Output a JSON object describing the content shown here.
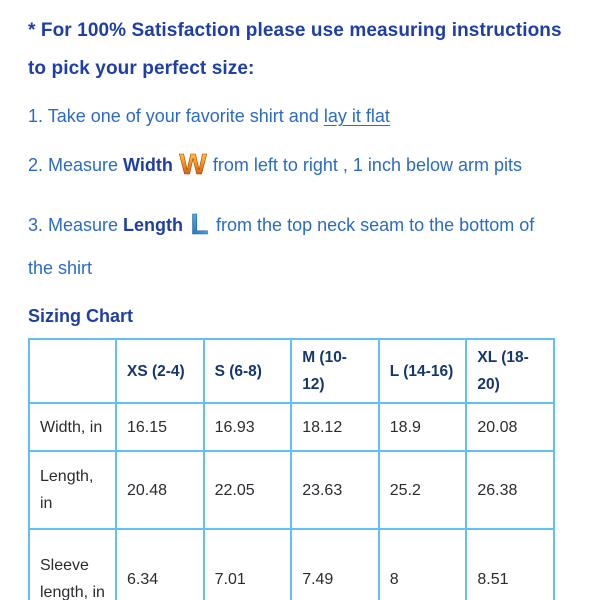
{
  "colors": {
    "heading_blue": "#1e3fa9",
    "body_blue": "#2a6bc9",
    "table_border_blue": "#5fc2f2",
    "table_header_navy": "#16366e",
    "cell_text": "#2a2c30",
    "w_icon_gradient_top": "#ffd34e",
    "w_icon_gradient_bottom": "#c2410b",
    "l_icon_gradient_top": "#8fd8f8",
    "l_icon_gradient_bottom": "#1a67ae"
  },
  "intro": {
    "line1": "* For 100% Satisfaction please use measuring instructions",
    "line2": "to pick your perfect size:"
  },
  "steps": {
    "step1": {
      "prefix": "1. Take one of your favorite shirt and ",
      "underlined": "lay it flat"
    },
    "step2": {
      "prefix": "2. Measure ",
      "keyword": "Width",
      "icon_letter": "W",
      "suffix": "from left to right , 1 inch below arm pits"
    },
    "step3": {
      "prefix": "3. Measure ",
      "keyword": "Length",
      "icon_letter": "L",
      "suffix": "from the top neck seam to the bottom of",
      "line2": "the shirt"
    }
  },
  "sizing_chart": {
    "title": "Sizing Chart",
    "columns": [
      "",
      "XS (2-4)",
      "S (6-8)",
      "M (10-12)",
      "L (14-16)",
      "XL (18-20)"
    ],
    "rows": [
      {
        "label": "Width, in",
        "values": [
          "16.15",
          "16.93",
          "18.12",
          "18.9",
          "20.08"
        ]
      },
      {
        "label": "Length, in",
        "values": [
          "20.48",
          "22.05",
          "23.63",
          "25.2",
          "26.38"
        ]
      },
      {
        "label": "Sleeve length, in",
        "values": [
          "6.34",
          "7.01",
          "7.49",
          "8",
          "8.51"
        ]
      }
    ]
  }
}
